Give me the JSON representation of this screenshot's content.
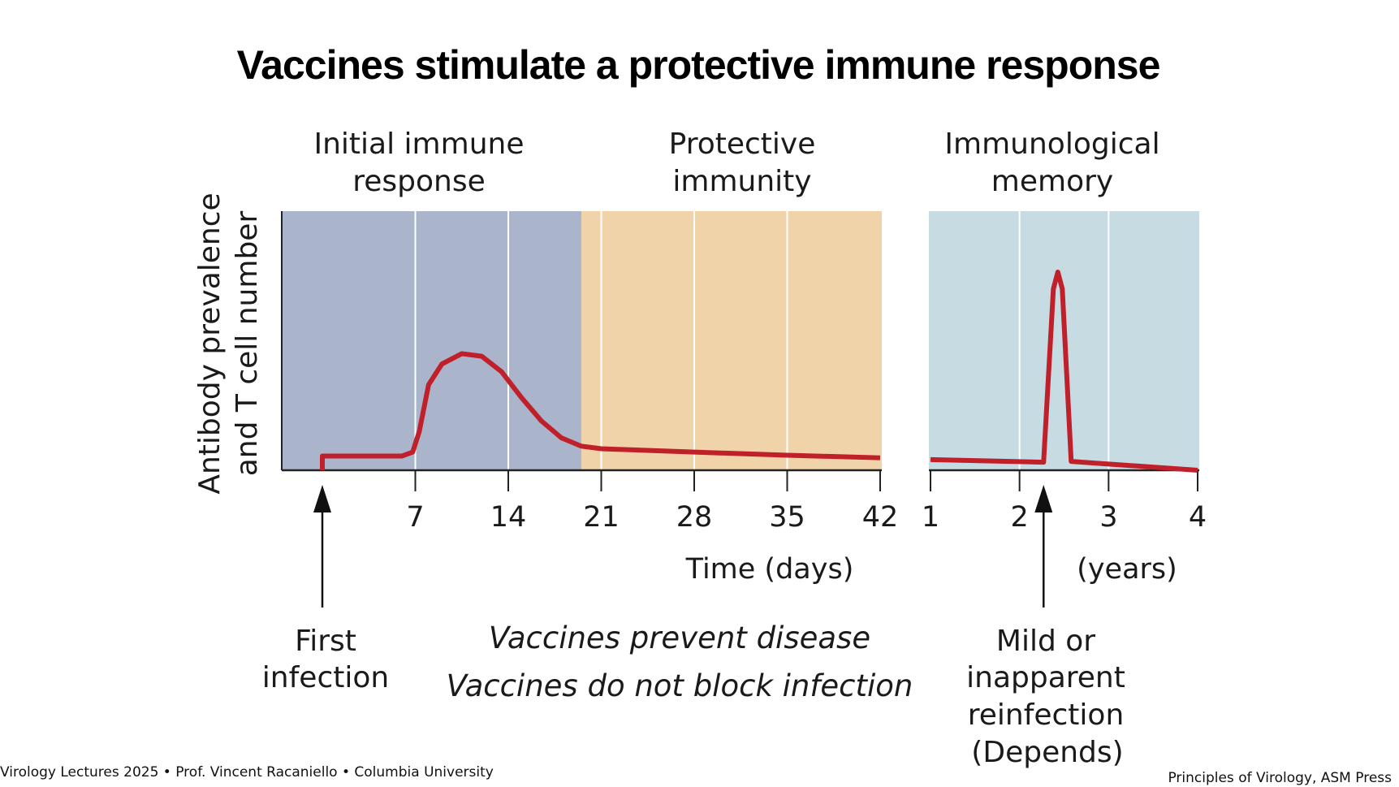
{
  "title": "Vaccines stimulate a protective immune response",
  "phases": {
    "initial": [
      "Initial immune",
      "response"
    ],
    "protective": [
      "Protective",
      "immunity"
    ],
    "memory": [
      "Immunological",
      "memory"
    ]
  },
  "notes": {
    "first_infection": [
      "First",
      "infection"
    ],
    "reinfection": [
      "Mild or",
      "inapparent",
      "reinfection",
      "(Depends)"
    ],
    "prevent": "Vaccines prevent disease",
    "no_block": "Vaccines do not block infection"
  },
  "footer": {
    "left": "Virology Lectures 2025 • Prof. Vincent Racaniello • Columbia University",
    "right": "Principles of Virology, ASM Press"
  },
  "colors": {
    "initial": "#aab5cc",
    "protective": "#f0d3a8",
    "memory": "#c6dbe2",
    "curve": "#c0202a"
  },
  "chart_data": {
    "type": "line",
    "ylabel": [
      "Antibody prevalence",
      "and T cell number"
    ],
    "ylim": [
      0,
      100
    ],
    "panels": [
      {
        "name": "days",
        "xlabel": "Time (days)",
        "xlim": [
          0,
          42
        ],
        "ticks": [
          7,
          14,
          21,
          28,
          35,
          42
        ],
        "tick_labels": [
          "7",
          "14",
          "21",
          "28",
          "35",
          "42"
        ],
        "phase_boundary": 19.5,
        "event_x": 0,
        "series": {
          "name": "response",
          "x": [
            0,
            0,
            3,
            6,
            6.8,
            7.3,
            8,
            9,
            10.5,
            12,
            13.5,
            15,
            16.5,
            18,
            19.5,
            21,
            28,
            35,
            42
          ],
          "y": [
            0,
            5.5,
            5.5,
            5.5,
            7,
            15,
            33,
            41,
            45,
            44,
            38,
            28,
            19,
            12.5,
            9.3,
            8.3,
            7,
            5.8,
            4.8
          ]
        }
      },
      {
        "name": "years",
        "xlabel": "(years)",
        "xlim": [
          1,
          4
        ],
        "ticks": [
          1,
          2,
          3,
          4
        ],
        "tick_labels": [
          "1",
          "2",
          "3",
          "4"
        ],
        "event_x": 2.27,
        "series": {
          "name": "response",
          "x": [
            1,
            2.27,
            2.38,
            2.43,
            2.48,
            2.58,
            3,
            4
          ],
          "y": [
            4.1,
            3.1,
            70,
            76.5,
            70,
            3.4,
            2.4,
            0
          ]
        }
      }
    ]
  }
}
